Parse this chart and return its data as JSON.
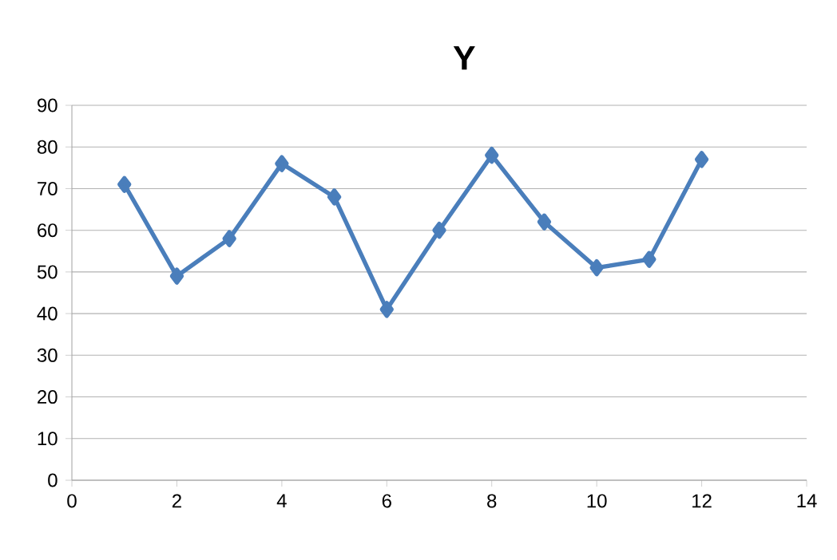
{
  "chart_data": {
    "type": "line",
    "title": "Y",
    "x": [
      1,
      2,
      3,
      4,
      5,
      6,
      7,
      8,
      9,
      10,
      11,
      12
    ],
    "values": [
      71,
      49,
      58,
      76,
      68,
      41,
      60,
      78,
      62,
      51,
      53,
      77
    ],
    "color": "#4a7ebb",
    "xlim": [
      0,
      14
    ],
    "xticks": [
      0,
      2,
      4,
      6,
      8,
      10,
      12,
      14
    ],
    "ylim": [
      0,
      90
    ],
    "yticks": [
      0,
      10,
      20,
      30,
      40,
      50,
      60,
      70,
      80,
      90
    ],
    "grid": "y",
    "marker": "diamond",
    "line_style": "solid",
    "legend": false
  }
}
